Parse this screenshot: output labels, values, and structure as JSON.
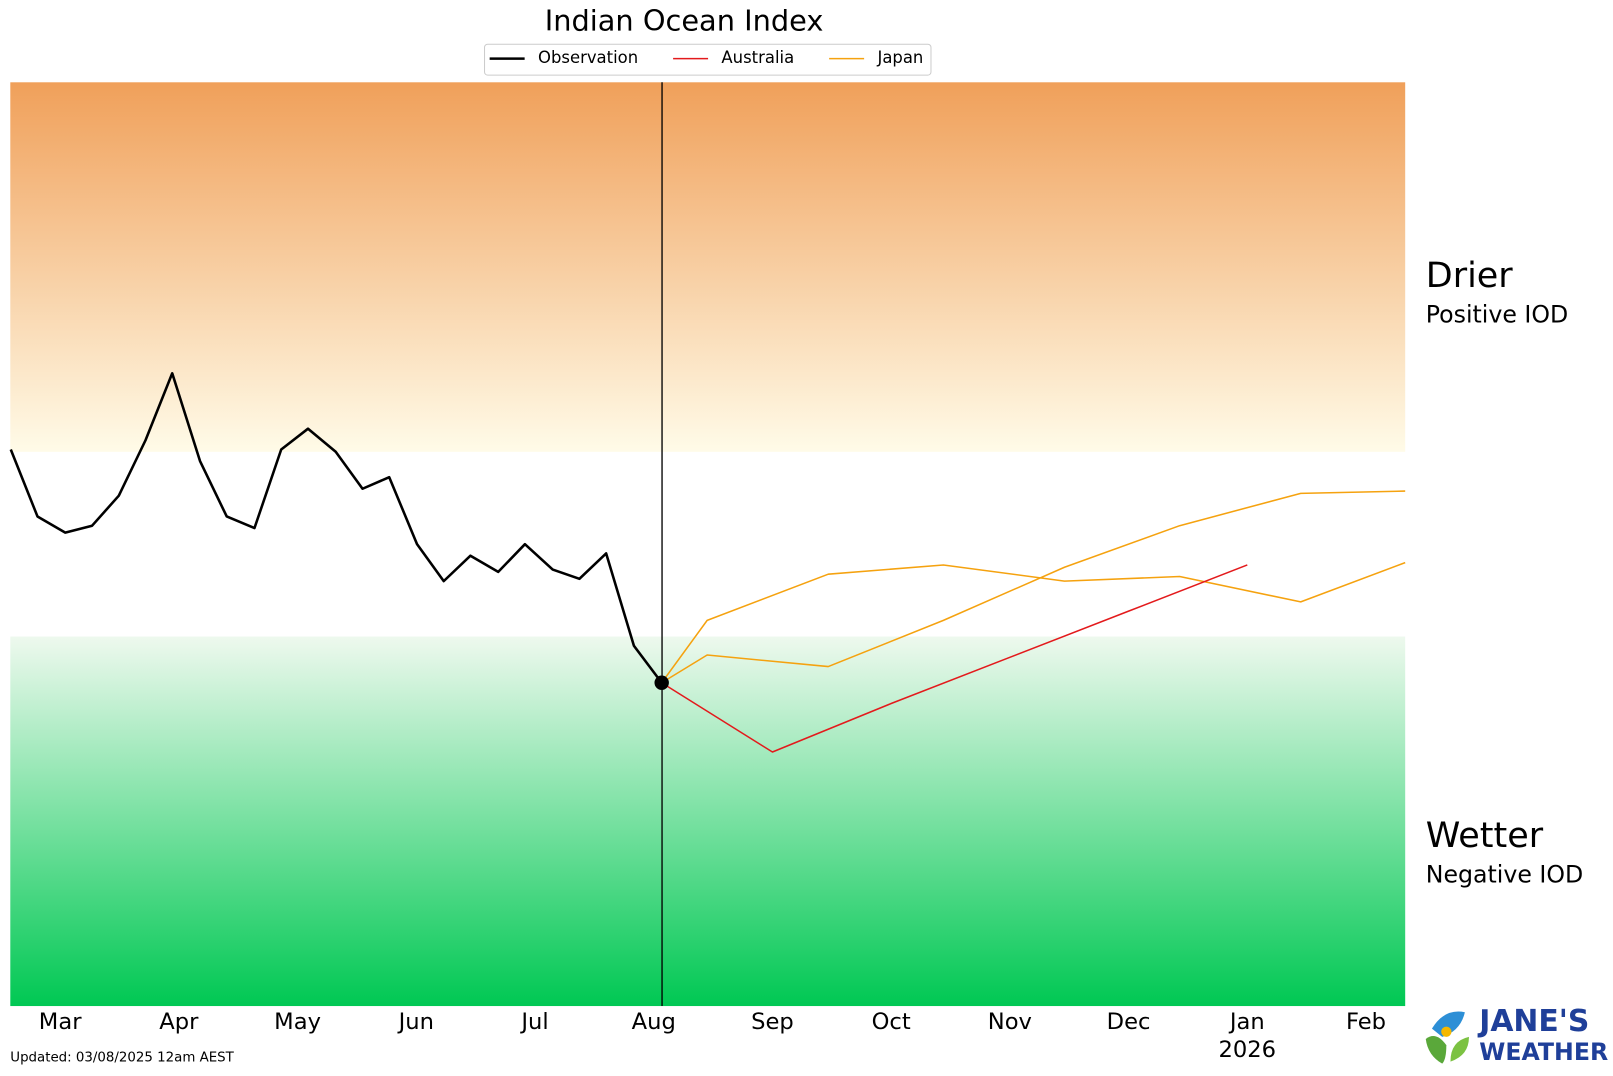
{
  "chart_data": {
    "type": "line",
    "title": "Indian Ocean Index",
    "xlim": [
      -0.42,
      11.33
    ],
    "ylim": [
      -2,
      2
    ],
    "xticks": [
      {
        "value": 0,
        "label": "Mar"
      },
      {
        "value": 1,
        "label": "Apr"
      },
      {
        "value": 2,
        "label": "May"
      },
      {
        "value": 3,
        "label": "Jun"
      },
      {
        "value": 4,
        "label": "Jul"
      },
      {
        "value": 5,
        "label": "Aug"
      },
      {
        "value": 6,
        "label": "Sep"
      },
      {
        "value": 7,
        "label": "Oct"
      },
      {
        "value": 8,
        "label": "Nov"
      },
      {
        "value": 9,
        "label": "Dec"
      },
      {
        "value": 10,
        "label": "Jan",
        "sublabel": "2026"
      },
      {
        "value": 11,
        "label": "Feb"
      }
    ],
    "now_x": 5.07,
    "bands": [
      {
        "from": 0.4,
        "to": 2,
        "color_near": "#fffbe8",
        "color_far": "#f0a05a",
        "label": "Drier",
        "sublabel": "Positive IOD"
      },
      {
        "from": -0.4,
        "to": -2,
        "color_near": "#eef9ee",
        "color_far": "#00c853",
        "label": "Wetter",
        "sublabel": "Negative IOD"
      }
    ],
    "series": [
      {
        "name": "Observation",
        "color": "#000000",
        "width": 2.5,
        "x": [
          -0.416,
          -0.191,
          0.043,
          0.269,
          0.494,
          0.719,
          0.944,
          1.178,
          1.403,
          1.637,
          1.862,
          2.088,
          2.321,
          2.547,
          2.772,
          3.006,
          3.231,
          3.456,
          3.69,
          3.915,
          4.149,
          4.374,
          4.599,
          4.833,
          5.067
        ],
        "values": [
          0.41,
          0.12,
          0.05,
          0.08,
          0.21,
          0.45,
          0.74,
          0.36,
          0.12,
          0.07,
          0.41,
          0.5,
          0.4,
          0.24,
          0.29,
          0.0,
          -0.16,
          -0.05,
          -0.12,
          0.0,
          -0.11,
          -0.15,
          -0.04,
          -0.44,
          -0.6
        ]
      },
      {
        "name": "Australia",
        "color": "#e31a1c",
        "width": 1.5,
        "x": [
          5.067,
          6.0,
          7.0,
          8.0,
          9.0,
          10.0
        ],
        "values": [
          -0.6,
          -0.9,
          -0.69,
          -0.49,
          -0.29,
          -0.09
        ]
      },
      {
        "name": "Japan",
        "color": "#f5a20f",
        "width": 1.5,
        "x": [
          5.067,
          5.45,
          6.47,
          7.44,
          8.46,
          9.43,
          10.45,
          11.33
        ],
        "values": [
          -0.6,
          -0.33,
          -0.13,
          -0.09,
          -0.16,
          -0.14,
          -0.25,
          -0.08
        ]
      },
      {
        "color": "#f5a20f",
        "width": 1.5,
        "x": [
          5.067,
          5.45,
          6.47,
          7.44,
          8.46,
          9.43,
          10.45,
          11.33
        ],
        "values": [
          -0.6,
          -0.48,
          -0.53,
          -0.33,
          -0.1,
          0.08,
          0.22,
          0.23
        ]
      }
    ],
    "footnote": "Updated: 03/08/2025 12am AEST",
    "brand": [
      "JANE'S",
      "WEATHER"
    ]
  }
}
